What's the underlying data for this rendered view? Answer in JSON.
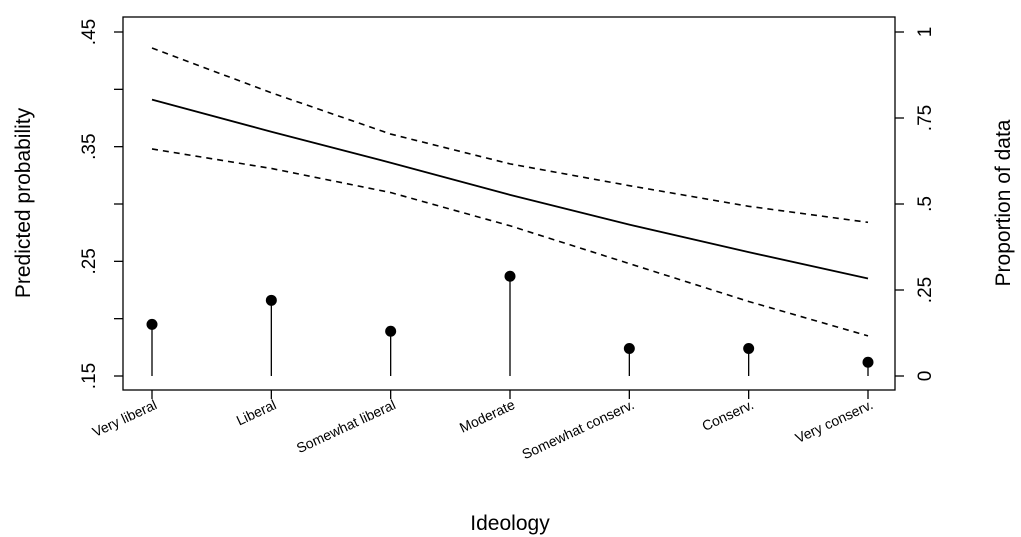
{
  "chart_data": {
    "type": "line",
    "xlabel": "Ideology",
    "ylabel_left": "Predicted probability",
    "ylabel_right": "Proportion of data",
    "categories": [
      "Very liberal",
      "Liberal",
      "Somewhat liberal",
      "Moderate",
      "Somewhat conserv.",
      "Conserv.",
      "Very conserv."
    ],
    "left_axis": {
      "ylim": [
        0.15,
        0.45
      ],
      "ticks": [
        0.15,
        0.2,
        0.25,
        0.3,
        0.35,
        0.4,
        0.45
      ],
      "tick_labels": [
        ".15",
        "",
        ".25",
        "",
        ".35",
        "",
        ".45"
      ]
    },
    "right_axis": {
      "ylim": [
        0,
        1
      ],
      "ticks": [
        0,
        0.25,
        0.5,
        0.75,
        1
      ],
      "tick_labels": [
        "0",
        ".25",
        ".5",
        ".75",
        "1"
      ]
    },
    "series": [
      {
        "style": "solid",
        "axis": "left",
        "values": [
          0.391,
          0.363,
          0.336,
          0.308,
          0.282,
          0.258,
          0.235
        ]
      },
      {
        "style": "dashed",
        "axis": "left",
        "values": [
          0.436,
          0.397,
          0.361,
          0.335,
          0.316,
          0.298,
          0.284
        ]
      },
      {
        "style": "dashed",
        "axis": "left",
        "values": [
          0.348,
          0.331,
          0.31,
          0.281,
          0.248,
          0.215,
          0.185
        ]
      },
      {
        "style": "stem",
        "axis": "right",
        "values": [
          0.15,
          0.22,
          0.13,
          0.29,
          0.08,
          0.08,
          0.04
        ]
      }
    ],
    "grid": false,
    "legend": "none"
  }
}
